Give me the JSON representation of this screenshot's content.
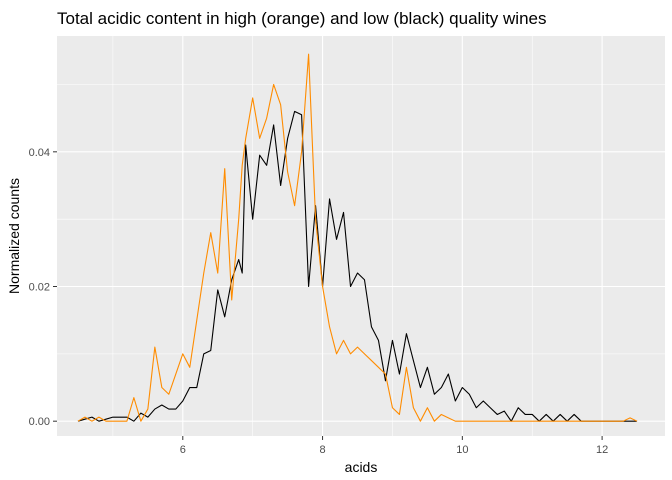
{
  "chart_data": {
    "type": "line",
    "title": "Total acidic content in high (orange) and low (black) quality wines",
    "xlabel": "acids",
    "ylabel": "Normalized counts",
    "xlim": [
      4.2,
      12.9
    ],
    "ylim": [
      -0.0022,
      0.0572
    ],
    "x_ticks": [
      6,
      8,
      10,
      12
    ],
    "x_tick_labels": [
      "6",
      "8",
      "10",
      "12"
    ],
    "y_ticks": [
      0.0,
      0.02,
      0.04
    ],
    "y_tick_labels": [
      "0.00",
      "0.02",
      "0.04"
    ],
    "grid": true,
    "background": "#ebebeb",
    "series": [
      {
        "color": "#000000",
        "x": [
          4.5,
          4.6,
          4.7,
          4.8,
          4.9,
          5.0,
          5.1,
          5.2,
          5.3,
          5.4,
          5.5,
          5.6,
          5.7,
          5.8,
          5.9,
          6.0,
          6.1,
          6.2,
          6.3,
          6.4,
          6.5,
          6.6,
          6.7,
          6.8,
          6.85,
          6.9,
          7.0,
          7.1,
          7.2,
          7.3,
          7.4,
          7.5,
          7.6,
          7.7,
          7.8,
          7.9,
          8.0,
          8.1,
          8.2,
          8.3,
          8.4,
          8.5,
          8.6,
          8.7,
          8.8,
          8.9,
          9.0,
          9.1,
          9.2,
          9.3,
          9.4,
          9.5,
          9.6,
          9.7,
          9.8,
          9.9,
          10.0,
          10.1,
          10.2,
          10.3,
          10.4,
          10.5,
          10.6,
          10.7,
          10.8,
          10.9,
          11.0,
          11.1,
          11.2,
          11.3,
          11.4,
          11.5,
          11.6,
          11.7,
          11.8,
          11.9,
          12.0,
          12.1,
          12.2,
          12.3,
          12.4,
          12.5
        ],
        "y": [
          0.0,
          0.0003,
          0.0006,
          0.0,
          0.0003,
          0.0006,
          0.0006,
          0.0006,
          0.0,
          0.0012,
          0.0006,
          0.0018,
          0.0024,
          0.0018,
          0.0018,
          0.003,
          0.005,
          0.005,
          0.01,
          0.0105,
          0.0195,
          0.0155,
          0.021,
          0.024,
          0.022,
          0.041,
          0.03,
          0.0395,
          0.038,
          0.044,
          0.035,
          0.042,
          0.046,
          0.0455,
          0.02,
          0.032,
          0.02,
          0.033,
          0.027,
          0.031,
          0.02,
          0.022,
          0.021,
          0.014,
          0.012,
          0.006,
          0.012,
          0.007,
          0.013,
          0.009,
          0.005,
          0.008,
          0.004,
          0.005,
          0.007,
          0.003,
          0.005,
          0.004,
          0.002,
          0.003,
          0.002,
          0.001,
          0.0015,
          0.0,
          0.002,
          0.001,
          0.001,
          0.0,
          0.001,
          0.0,
          0.001,
          0.0,
          0.001,
          0.0,
          0.0,
          0.0,
          0.0,
          0.0,
          0.0,
          0.0,
          0.0,
          0.0
        ]
      },
      {
        "color": "#ff8c00",
        "x": [
          4.5,
          4.6,
          4.7,
          4.8,
          4.9,
          5.0,
          5.1,
          5.2,
          5.3,
          5.4,
          5.5,
          5.6,
          5.7,
          5.8,
          5.9,
          6.0,
          6.1,
          6.2,
          6.3,
          6.4,
          6.5,
          6.6,
          6.7,
          6.8,
          6.85,
          6.9,
          7.0,
          7.1,
          7.2,
          7.3,
          7.4,
          7.5,
          7.6,
          7.7,
          7.8,
          7.9,
          8.0,
          8.1,
          8.2,
          8.3,
          8.4,
          8.5,
          8.6,
          8.7,
          8.8,
          8.9,
          9.0,
          9.1,
          9.2,
          9.3,
          9.4,
          9.5,
          9.6,
          9.7,
          9.8,
          9.9,
          10.0,
          10.1,
          10.2,
          10.3,
          10.4,
          10.5,
          10.6,
          10.7,
          10.8,
          10.9,
          11.0,
          11.1,
          11.2,
          11.3,
          11.4,
          11.5,
          11.6,
          11.7,
          11.8,
          11.9,
          12.0,
          12.1,
          12.2,
          12.3,
          12.4,
          12.5
        ],
        "y": [
          0.0,
          0.0006,
          0.0,
          0.0006,
          0.0,
          0.0,
          0.0,
          0.0,
          0.0035,
          0.0,
          0.0018,
          0.011,
          0.005,
          0.004,
          0.007,
          0.01,
          0.008,
          0.015,
          0.022,
          0.028,
          0.022,
          0.0375,
          0.018,
          0.03,
          0.038,
          0.042,
          0.048,
          0.042,
          0.045,
          0.05,
          0.047,
          0.037,
          0.032,
          0.04,
          0.0545,
          0.03,
          0.02,
          0.014,
          0.01,
          0.012,
          0.01,
          0.011,
          0.01,
          0.009,
          0.008,
          0.007,
          0.002,
          0.001,
          0.008,
          0.002,
          0.0,
          0.002,
          0.0,
          0.001,
          0.0005,
          0.0,
          0.0,
          0.0,
          0.0,
          0.0,
          0.0,
          0.0,
          0.0,
          0.0,
          0.0,
          0.0,
          0.0,
          0.0,
          0.0,
          0.0,
          0.0,
          0.0,
          0.0,
          0.0,
          0.0,
          0.0,
          0.0,
          0.0,
          0.0,
          0.0,
          0.0005,
          0.0
        ]
      }
    ]
  }
}
